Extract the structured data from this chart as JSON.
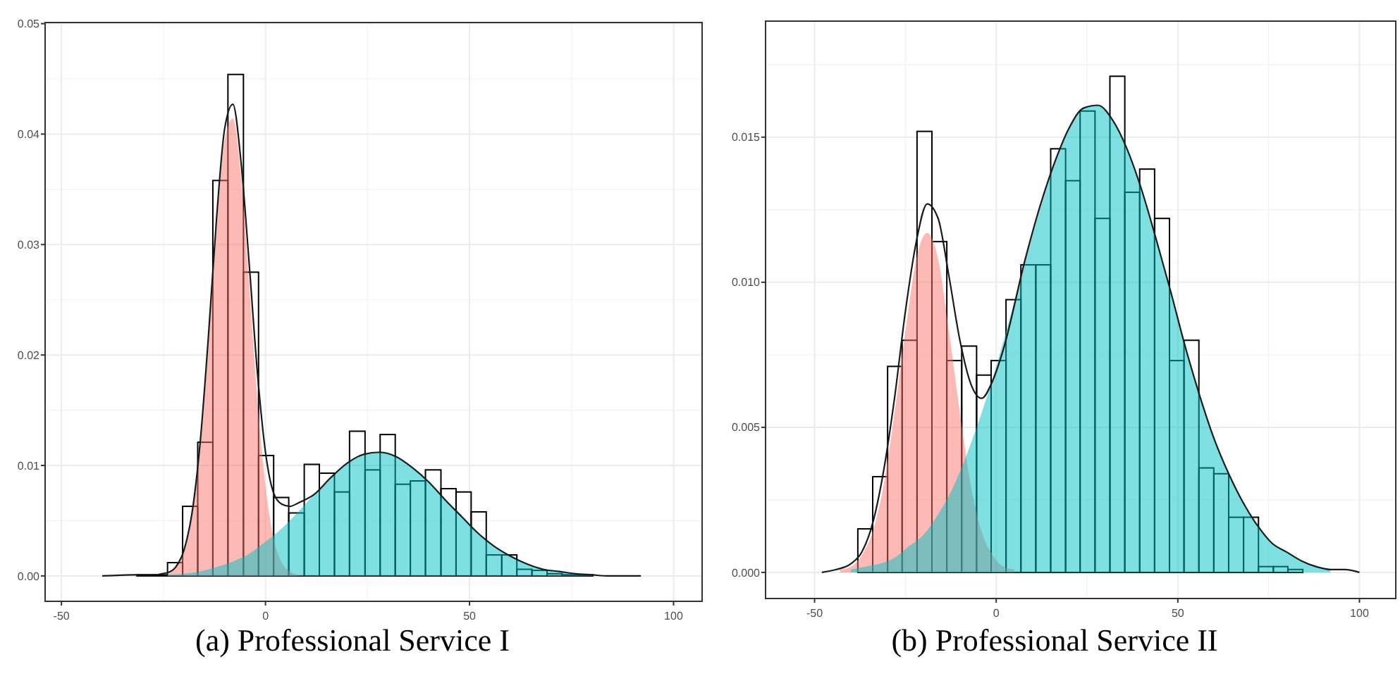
{
  "chart_data": [
    {
      "type": "histogram",
      "title": "(a) Professional Service I",
      "color": "#000000",
      "bins": [
        -31.5,
        -27.8,
        -24.0,
        -20.3,
        -16.6,
        -12.9,
        -9.2,
        -5.4,
        -1.7,
        2.0,
        5.7,
        9.5,
        13.2,
        16.9,
        20.6,
        24.4,
        28.1,
        31.8,
        35.5,
        39.2,
        43.0,
        46.7,
        50.4,
        54.1,
        57.9,
        61.6,
        65.3,
        69.0,
        72.7,
        76.5,
        80.2
      ],
      "values": [
        0.0001,
        0.0001,
        0.0012,
        0.0063,
        0.0121,
        0.0358,
        0.0454,
        0.0275,
        0.0109,
        0.0071,
        0.0057,
        0.0101,
        0.0093,
        0.0076,
        0.0131,
        0.0096,
        0.0128,
        0.0083,
        0.0086,
        0.0096,
        0.0079,
        0.0076,
        0.0058,
        0.0019,
        0.0019,
        0.0006,
        0.0005,
        0.0002,
        0.0001,
        0.0001
      ],
      "series": [
        {
          "type": "area",
          "color": "#f8766d",
          "x": [
            -24,
            -22,
            -20,
            -18,
            -16,
            -14,
            -12,
            -10,
            -8,
            -6,
            -4,
            -2,
            0,
            2,
            4,
            6,
            8
          ],
          "values": [
            0.0002,
            0.0007,
            0.0021,
            0.0054,
            0.0117,
            0.021,
            0.0315,
            0.0395,
            0.0414,
            0.0361,
            0.0263,
            0.016,
            0.0081,
            0.0034,
            0.0012,
            0.0004,
            0.0001
          ]
        },
        {
          "type": "area",
          "color": "#00bfc4",
          "x": [
            -24,
            -20,
            -16,
            -12,
            -8,
            -4,
            0,
            4,
            8,
            12,
            16,
            20,
            24,
            28,
            32,
            36,
            40,
            44,
            48,
            52,
            56,
            60,
            64,
            68,
            72,
            76,
            80
          ],
          "values": [
            0.0001,
            0.0002,
            0.0004,
            0.0008,
            0.0013,
            0.002,
            0.0031,
            0.0043,
            0.0058,
            0.0074,
            0.0089,
            0.0102,
            0.011,
            0.0112,
            0.0108,
            0.0098,
            0.0085,
            0.0069,
            0.0054,
            0.0039,
            0.0027,
            0.0018,
            0.0011,
            0.0006,
            0.0004,
            0.0002,
            0.0001
          ]
        },
        {
          "type": "line",
          "color": "#1a1a1a",
          "x": [
            -40,
            -32,
            -28,
            -24,
            -22,
            -20,
            -18,
            -16,
            -14,
            -12,
            -10,
            -8,
            -6,
            -4,
            -2,
            0,
            2,
            4,
            6,
            8,
            12,
            16,
            20,
            24,
            28,
            32,
            36,
            40,
            44,
            48,
            52,
            56,
            60,
            64,
            68,
            72,
            76,
            80,
            84,
            88,
            92
          ],
          "values": [
            0,
            0.0001,
            0.0001,
            0.0003,
            0.0008,
            0.0023,
            0.0057,
            0.0121,
            0.0216,
            0.0323,
            0.0405,
            0.0427,
            0.0375,
            0.0283,
            0.0185,
            0.0112,
            0.0075,
            0.0065,
            0.0063,
            0.0066,
            0.0074,
            0.0089,
            0.0102,
            0.011,
            0.0112,
            0.0108,
            0.0098,
            0.0085,
            0.0069,
            0.0054,
            0.0039,
            0.0027,
            0.0018,
            0.0011,
            0.0006,
            0.0004,
            0.0002,
            0.0001,
            0,
            0,
            0
          ]
        }
      ],
      "xlim": [
        -54,
        107
      ],
      "ylim": [
        -0.0023,
        0.0501
      ],
      "xticks": [
        -50,
        0,
        50,
        100
      ],
      "yticks": [
        {
          "value": 0,
          "label": "0.00"
        },
        {
          "value": 0.01,
          "label": "0.01"
        },
        {
          "value": 0.02,
          "label": "0.02"
        },
        {
          "value": 0.03,
          "label": "0.03"
        },
        {
          "value": 0.04,
          "label": "0.04"
        },
        {
          "value": 0.05,
          "label": "0.05"
        }
      ],
      "grid": true
    },
    {
      "type": "histogram",
      "title": "(b) Professional Service II",
      "color": "#000000",
      "bins": [
        -38.1,
        -34.0,
        -29.9,
        -25.9,
        -21.8,
        -17.7,
        -13.6,
        -9.5,
        -5.4,
        -1.4,
        2.7,
        6.8,
        10.9,
        15.0,
        19.1,
        23.1,
        27.2,
        31.3,
        35.4,
        39.5,
        43.6,
        47.7,
        51.7,
        55.8,
        59.9,
        64.0,
        68.1,
        72.2,
        76.3,
        80.3,
        84.4
      ],
      "values": [
        0.0015,
        0.0033,
        0.0071,
        0.008,
        0.0152,
        0.0114,
        0.0073,
        0.0078,
        0.0068,
        0.0073,
        0.0094,
        0.0106,
        0.0106,
        0.0146,
        0.0135,
        0.0159,
        0.0122,
        0.0171,
        0.0131,
        0.0139,
        0.0122,
        0.0073,
        0.008,
        0.0036,
        0.0034,
        0.0019,
        0.0019,
        0.0002,
        0.0002,
        0.0001
      ],
      "series": [
        {
          "type": "area",
          "color": "#f8766d",
          "x": [
            -43,
            -40,
            -37,
            -34,
            -31,
            -28,
            -25,
            -22,
            -19,
            -16,
            -13,
            -10,
            -7,
            -4,
            -1,
            2,
            5
          ],
          "values": [
            0.0001,
            0.0002,
            0.0006,
            0.0014,
            0.003,
            0.0055,
            0.0083,
            0.0108,
            0.0117,
            0.0108,
            0.0083,
            0.0055,
            0.003,
            0.0014,
            0.0006,
            0.0002,
            0.0001
          ]
        },
        {
          "type": "area",
          "color": "#00bfc4",
          "x": [
            -40,
            -36,
            -32,
            -28,
            -24,
            -20,
            -16,
            -12,
            -8,
            -4,
            0,
            4,
            8,
            12,
            16,
            20,
            24,
            28,
            32,
            36,
            40,
            44,
            48,
            52,
            56,
            60,
            64,
            68,
            72,
            76,
            80,
            84,
            88,
            92
          ],
          "values": [
            0.0001,
            0.0002,
            0.0003,
            0.0005,
            0.0009,
            0.0013,
            0.002,
            0.0029,
            0.0041,
            0.0055,
            0.0071,
            0.0089,
            0.0108,
            0.0126,
            0.0141,
            0.0153,
            0.016,
            0.0161,
            0.0156,
            0.0146,
            0.0132,
            0.0115,
            0.0097,
            0.0078,
            0.0061,
            0.0046,
            0.0034,
            0.0024,
            0.0016,
            0.001,
            0.0007,
            0.0004,
            0.0002,
            0.0001
          ]
        },
        {
          "type": "line",
          "color": "#1a1a1a",
          "x": [
            -48,
            -44,
            -40,
            -37,
            -34,
            -31,
            -28,
            -25,
            -22,
            -19,
            -16,
            -13,
            -10,
            -7,
            -4,
            -1,
            2,
            8,
            12,
            16,
            20,
            24,
            28,
            32,
            36,
            40,
            44,
            48,
            52,
            56,
            60,
            64,
            68,
            72,
            76,
            80,
            84,
            88,
            92,
            96,
            100
          ],
          "values": [
            0,
            0.0001,
            0.0003,
            0.0007,
            0.0017,
            0.0035,
            0.006,
            0.009,
            0.0114,
            0.0127,
            0.0122,
            0.0102,
            0.008,
            0.0065,
            0.006,
            0.0066,
            0.0077,
            0.0108,
            0.0126,
            0.0141,
            0.0153,
            0.016,
            0.0161,
            0.0156,
            0.0146,
            0.0132,
            0.0115,
            0.0097,
            0.0078,
            0.0061,
            0.0046,
            0.0034,
            0.0024,
            0.0016,
            0.001,
            0.0007,
            0.0004,
            0.0002,
            0.0001,
            0.0001,
            0
          ]
        }
      ],
      "xlim": [
        -63.5,
        110
      ],
      "ylim": [
        -0.0009,
        0.019
      ],
      "xticks": [
        -50,
        0,
        50,
        100
      ],
      "yticks": [
        {
          "value": 0,
          "label": "0.000"
        },
        {
          "value": 0.005,
          "label": "0.005"
        },
        {
          "value": 0.01,
          "label": "0.010"
        },
        {
          "value": 0.015,
          "label": "0.015"
        }
      ],
      "grid": true
    }
  ]
}
